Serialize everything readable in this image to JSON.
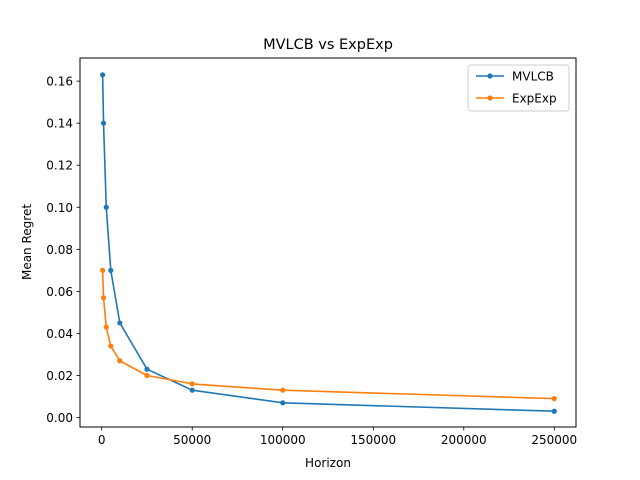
{
  "chart_data": {
    "type": "line",
    "title": "MVLCB vs ExpExp",
    "xlabel": "Horizon",
    "ylabel": "Mean Regret",
    "xlim": [
      -12000,
      262000
    ],
    "ylim": [
      -0.0045,
      0.171
    ],
    "xticks": [
      0,
      50000,
      100000,
      150000,
      200000,
      250000
    ],
    "xtick_labels": [
      "0",
      "50000",
      "100000",
      "150000",
      "200000",
      "250000"
    ],
    "yticks": [
      0.0,
      0.02,
      0.04,
      0.06,
      0.08,
      0.1,
      0.12,
      0.14,
      0.16
    ],
    "ytick_labels": [
      "0.00",
      "0.02",
      "0.04",
      "0.06",
      "0.08",
      "0.10",
      "0.12",
      "0.14",
      "0.16"
    ],
    "grid": false,
    "legend_position": "top-right",
    "series": [
      {
        "name": "MVLCB",
        "color": "#1f77b4",
        "marker": "dot",
        "x": [
          500,
          1000,
          2500,
          5000,
          10000,
          25000,
          50000,
          100000,
          250000
        ],
        "y": [
          0.163,
          0.14,
          0.1,
          0.07,
          0.045,
          0.023,
          0.013,
          0.007,
          0.003
        ]
      },
      {
        "name": "ExpExp",
        "color": "#ff7f0e",
        "marker": "dot",
        "x": [
          500,
          1000,
          2500,
          5000,
          10000,
          25000,
          50000,
          100000,
          250000
        ],
        "y": [
          0.07,
          0.057,
          0.043,
          0.034,
          0.027,
          0.02,
          0.016,
          0.013,
          0.009
        ]
      }
    ]
  }
}
